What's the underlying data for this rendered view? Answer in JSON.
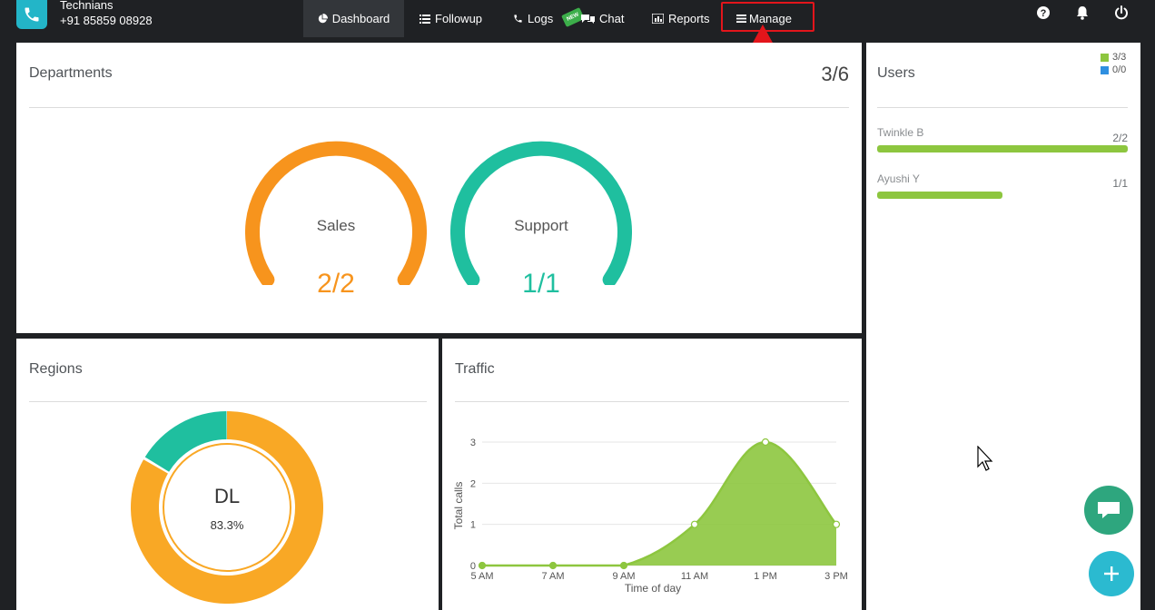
{
  "header": {
    "company": "Technians",
    "phone": "+91 85859 08928",
    "nav": {
      "dashboard": "Dashboard",
      "followup": "Followup",
      "logs": "Logs",
      "new_badge": "NEW",
      "chat": "Chat",
      "reports": "Reports",
      "manage": "Manage"
    }
  },
  "departments": {
    "title": "Departments",
    "count": "3/6",
    "gauges": [
      {
        "label": "Sales",
        "value": "2/2",
        "color": "#f7941d"
      },
      {
        "label": "Support",
        "value": "1/1",
        "color": "#1fbf9f"
      }
    ]
  },
  "users": {
    "title": "Users",
    "legend": [
      {
        "text": "3/3",
        "color": "#8dc63f"
      },
      {
        "text": "0/0",
        "color": "#2f8fe0"
      }
    ],
    "list": [
      {
        "name": "Twinkle B",
        "count": "2/2",
        "fill": 1.0
      },
      {
        "name": "Ayushi Y",
        "count": "1/1",
        "fill": 0.5
      }
    ]
  },
  "regions": {
    "title": "Regions",
    "center_label": "DL",
    "center_value": "83.3%",
    "share": 0.833,
    "colors": {
      "main": "#f9a825",
      "rest": "#1fbf9f"
    }
  },
  "traffic": {
    "title": "Traffic",
    "chart_data": {
      "type": "area",
      "x": [
        "5 AM",
        "7 AM",
        "9 AM",
        "11 AM",
        "1 PM",
        "3 PM"
      ],
      "series": [
        {
          "values": [
            0,
            0,
            0,
            1,
            3,
            1
          ]
        }
      ],
      "xlabel": "Time of day",
      "ylabel": "Total calls",
      "ylim": [
        0,
        3
      ],
      "yticks": [
        "0",
        "1",
        "2",
        "3"
      ],
      "grid": true,
      "color": "#8dc63f"
    }
  }
}
